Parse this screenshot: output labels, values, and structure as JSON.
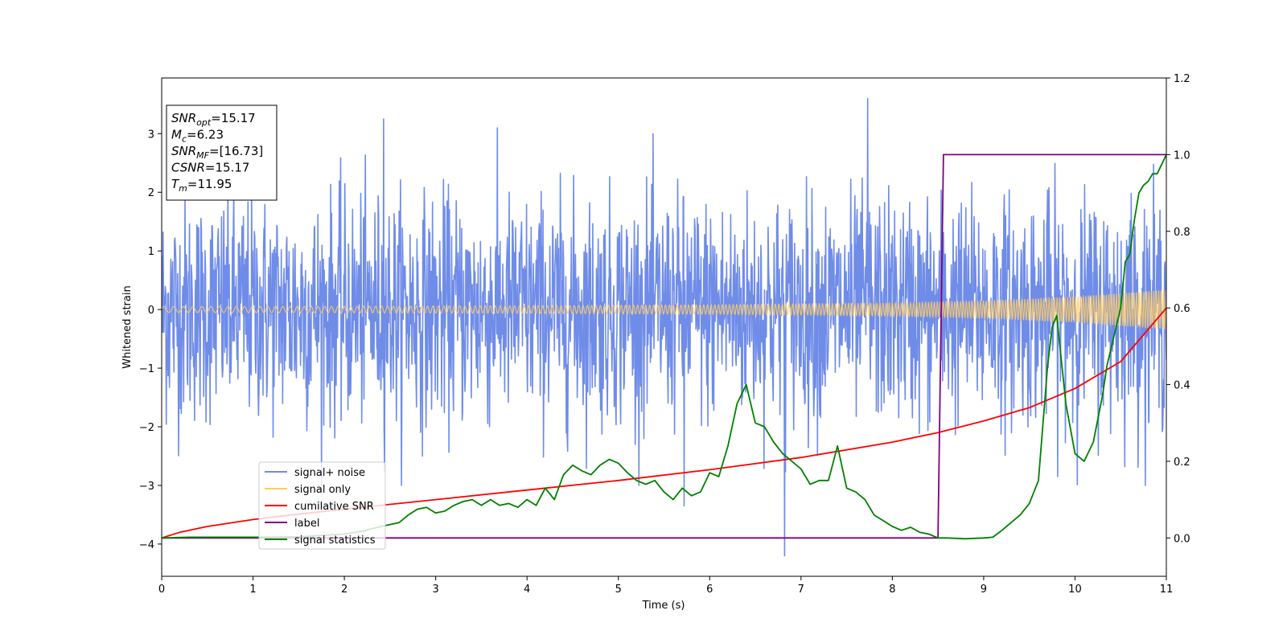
{
  "chart_data": {
    "type": "line",
    "xlabel": "Time (s)",
    "ylabel": "Whitened strain",
    "xlim": [
      0,
      11
    ],
    "ylim_left": [
      -4.55,
      3.95
    ],
    "ylim_right": [
      -0.1,
      1.2
    ],
    "xticks": [
      "0",
      "1",
      "2",
      "3",
      "4",
      "5",
      "6",
      "7",
      "8",
      "9",
      "10",
      "11"
    ],
    "yticks_left": [
      "−4",
      "−3",
      "−2",
      "−1",
      "0",
      "1",
      "2",
      "3"
    ],
    "yticks_left_values": [
      -4,
      -3,
      -2,
      -1,
      0,
      1,
      2,
      3
    ],
    "yticks_right": [
      "0.0",
      "0.2",
      "0.4",
      "0.6",
      "0.8",
      "1.0",
      "1.2"
    ],
    "yticks_right_values": [
      0.0,
      0.2,
      0.4,
      0.6,
      0.8,
      1.0,
      1.2
    ],
    "legend": {
      "placement": "lower-left",
      "entries": [
        {
          "name": "signal+ noise",
          "color": "#6f8ce8"
        },
        {
          "name": "signal only",
          "color": "#ffcc66"
        },
        {
          "name": "cumilative SNR",
          "color": "#ff0000"
        },
        {
          "name": "label",
          "color": "#800080"
        },
        {
          "name": "signal statistics",
          "color": "#008000"
        }
      ]
    },
    "info_box": {
      "lines": [
        {
          "main": "SNR",
          "sub": "opt",
          "rest": "=15.17"
        },
        {
          "main": "M",
          "sub": "c",
          "rest": "=6.23"
        },
        {
          "main": "SNR",
          "sub": "MF",
          "rest": "=[16.73]"
        },
        {
          "main": "CSNR",
          "sub": "",
          "rest": "=15.17"
        },
        {
          "main": "T",
          "sub": "m",
          "rest": "=11.95"
        }
      ]
    },
    "series": [
      {
        "name": "signal+ noise",
        "color": "#6f8ce8",
        "axis": "left",
        "noise": {
          "std": 0.95,
          "samples": 2200,
          "rare_spikes": [
            [
              6.82,
              -4.2
            ],
            [
              7.73,
              3.6
            ],
            [
              2.43,
              3.25
            ],
            [
              5.72,
              -3.35
            ]
          ]
        }
      },
      {
        "name": "signal only",
        "color": "#ffcc66",
        "axis": "left",
        "envelope": {
          "x": [
            0,
            2,
            4,
            6,
            8,
            9,
            10,
            11
          ],
          "amp": [
            0.05,
            0.055,
            0.065,
            0.08,
            0.11,
            0.15,
            0.22,
            0.34
          ]
        }
      },
      {
        "name": "cumilative SNR",
        "color": "#ff0000",
        "axis": "right",
        "x": [
          0,
          0.2,
          0.5,
          1,
          1.5,
          2,
          3,
          4,
          5,
          6,
          7,
          8,
          8.5,
          9,
          9.5,
          10,
          10.5,
          11
        ],
        "y": [
          0.0,
          0.015,
          0.03,
          0.048,
          0.062,
          0.075,
          0.1,
          0.125,
          0.15,
          0.178,
          0.21,
          0.25,
          0.275,
          0.305,
          0.34,
          0.39,
          0.46,
          0.6
        ]
      },
      {
        "name": "label",
        "color": "#800080",
        "axis": "right",
        "x": [
          0,
          8.5,
          8.56,
          11
        ],
        "y": [
          0,
          0,
          1,
          1
        ]
      },
      {
        "name": "signal statistics",
        "color": "#008000",
        "axis": "right",
        "x": [
          0,
          0.3,
          1.0,
          1.5,
          2.0,
          2.2,
          2.4,
          2.6,
          2.7,
          2.8,
          2.9,
          3.0,
          3.1,
          3.2,
          3.3,
          3.4,
          3.5,
          3.6,
          3.7,
          3.8,
          3.9,
          4.0,
          4.1,
          4.2,
          4.3,
          4.4,
          4.5,
          4.6,
          4.7,
          4.8,
          4.9,
          5.0,
          5.1,
          5.2,
          5.3,
          5.4,
          5.5,
          5.6,
          5.7,
          5.8,
          5.9,
          6.0,
          6.1,
          6.2,
          6.3,
          6.4,
          6.5,
          6.6,
          6.7,
          6.8,
          6.9,
          7.0,
          7.1,
          7.2,
          7.3,
          7.4,
          7.5,
          7.6,
          7.7,
          7.8,
          7.9,
          8.0,
          8.1,
          8.2,
          8.3,
          8.4,
          8.5,
          8.6,
          8.8,
          9.0,
          9.1,
          9.2,
          9.3,
          9.4,
          9.5,
          9.6,
          9.7,
          9.75,
          9.8,
          9.9,
          10.0,
          10.1,
          10.2,
          10.3,
          10.35,
          10.4,
          10.5,
          10.55,
          10.6,
          10.65,
          10.7,
          10.75,
          10.8,
          10.85,
          10.9,
          11.0
        ],
        "y": [
          0.0,
          0.002,
          0.002,
          0.003,
          0.01,
          0.018,
          0.03,
          0.04,
          0.06,
          0.075,
          0.08,
          0.065,
          0.07,
          0.085,
          0.095,
          0.1,
          0.085,
          0.1,
          0.085,
          0.09,
          0.08,
          0.1,
          0.085,
          0.13,
          0.1,
          0.165,
          0.19,
          0.175,
          0.165,
          0.19,
          0.205,
          0.195,
          0.17,
          0.15,
          0.14,
          0.15,
          0.12,
          0.1,
          0.13,
          0.11,
          0.12,
          0.17,
          0.16,
          0.24,
          0.35,
          0.4,
          0.3,
          0.29,
          0.25,
          0.22,
          0.2,
          0.18,
          0.14,
          0.15,
          0.15,
          0.24,
          0.13,
          0.12,
          0.1,
          0.06,
          0.045,
          0.03,
          0.02,
          0.028,
          0.015,
          0.01,
          0.0,
          0.0,
          -0.002,
          0.0,
          0.002,
          0.02,
          0.04,
          0.06,
          0.09,
          0.15,
          0.45,
          0.55,
          0.58,
          0.35,
          0.22,
          0.2,
          0.25,
          0.37,
          0.45,
          0.5,
          0.6,
          0.72,
          0.74,
          0.83,
          0.9,
          0.92,
          0.93,
          0.95,
          0.95,
          1.0
        ]
      }
    ]
  }
}
